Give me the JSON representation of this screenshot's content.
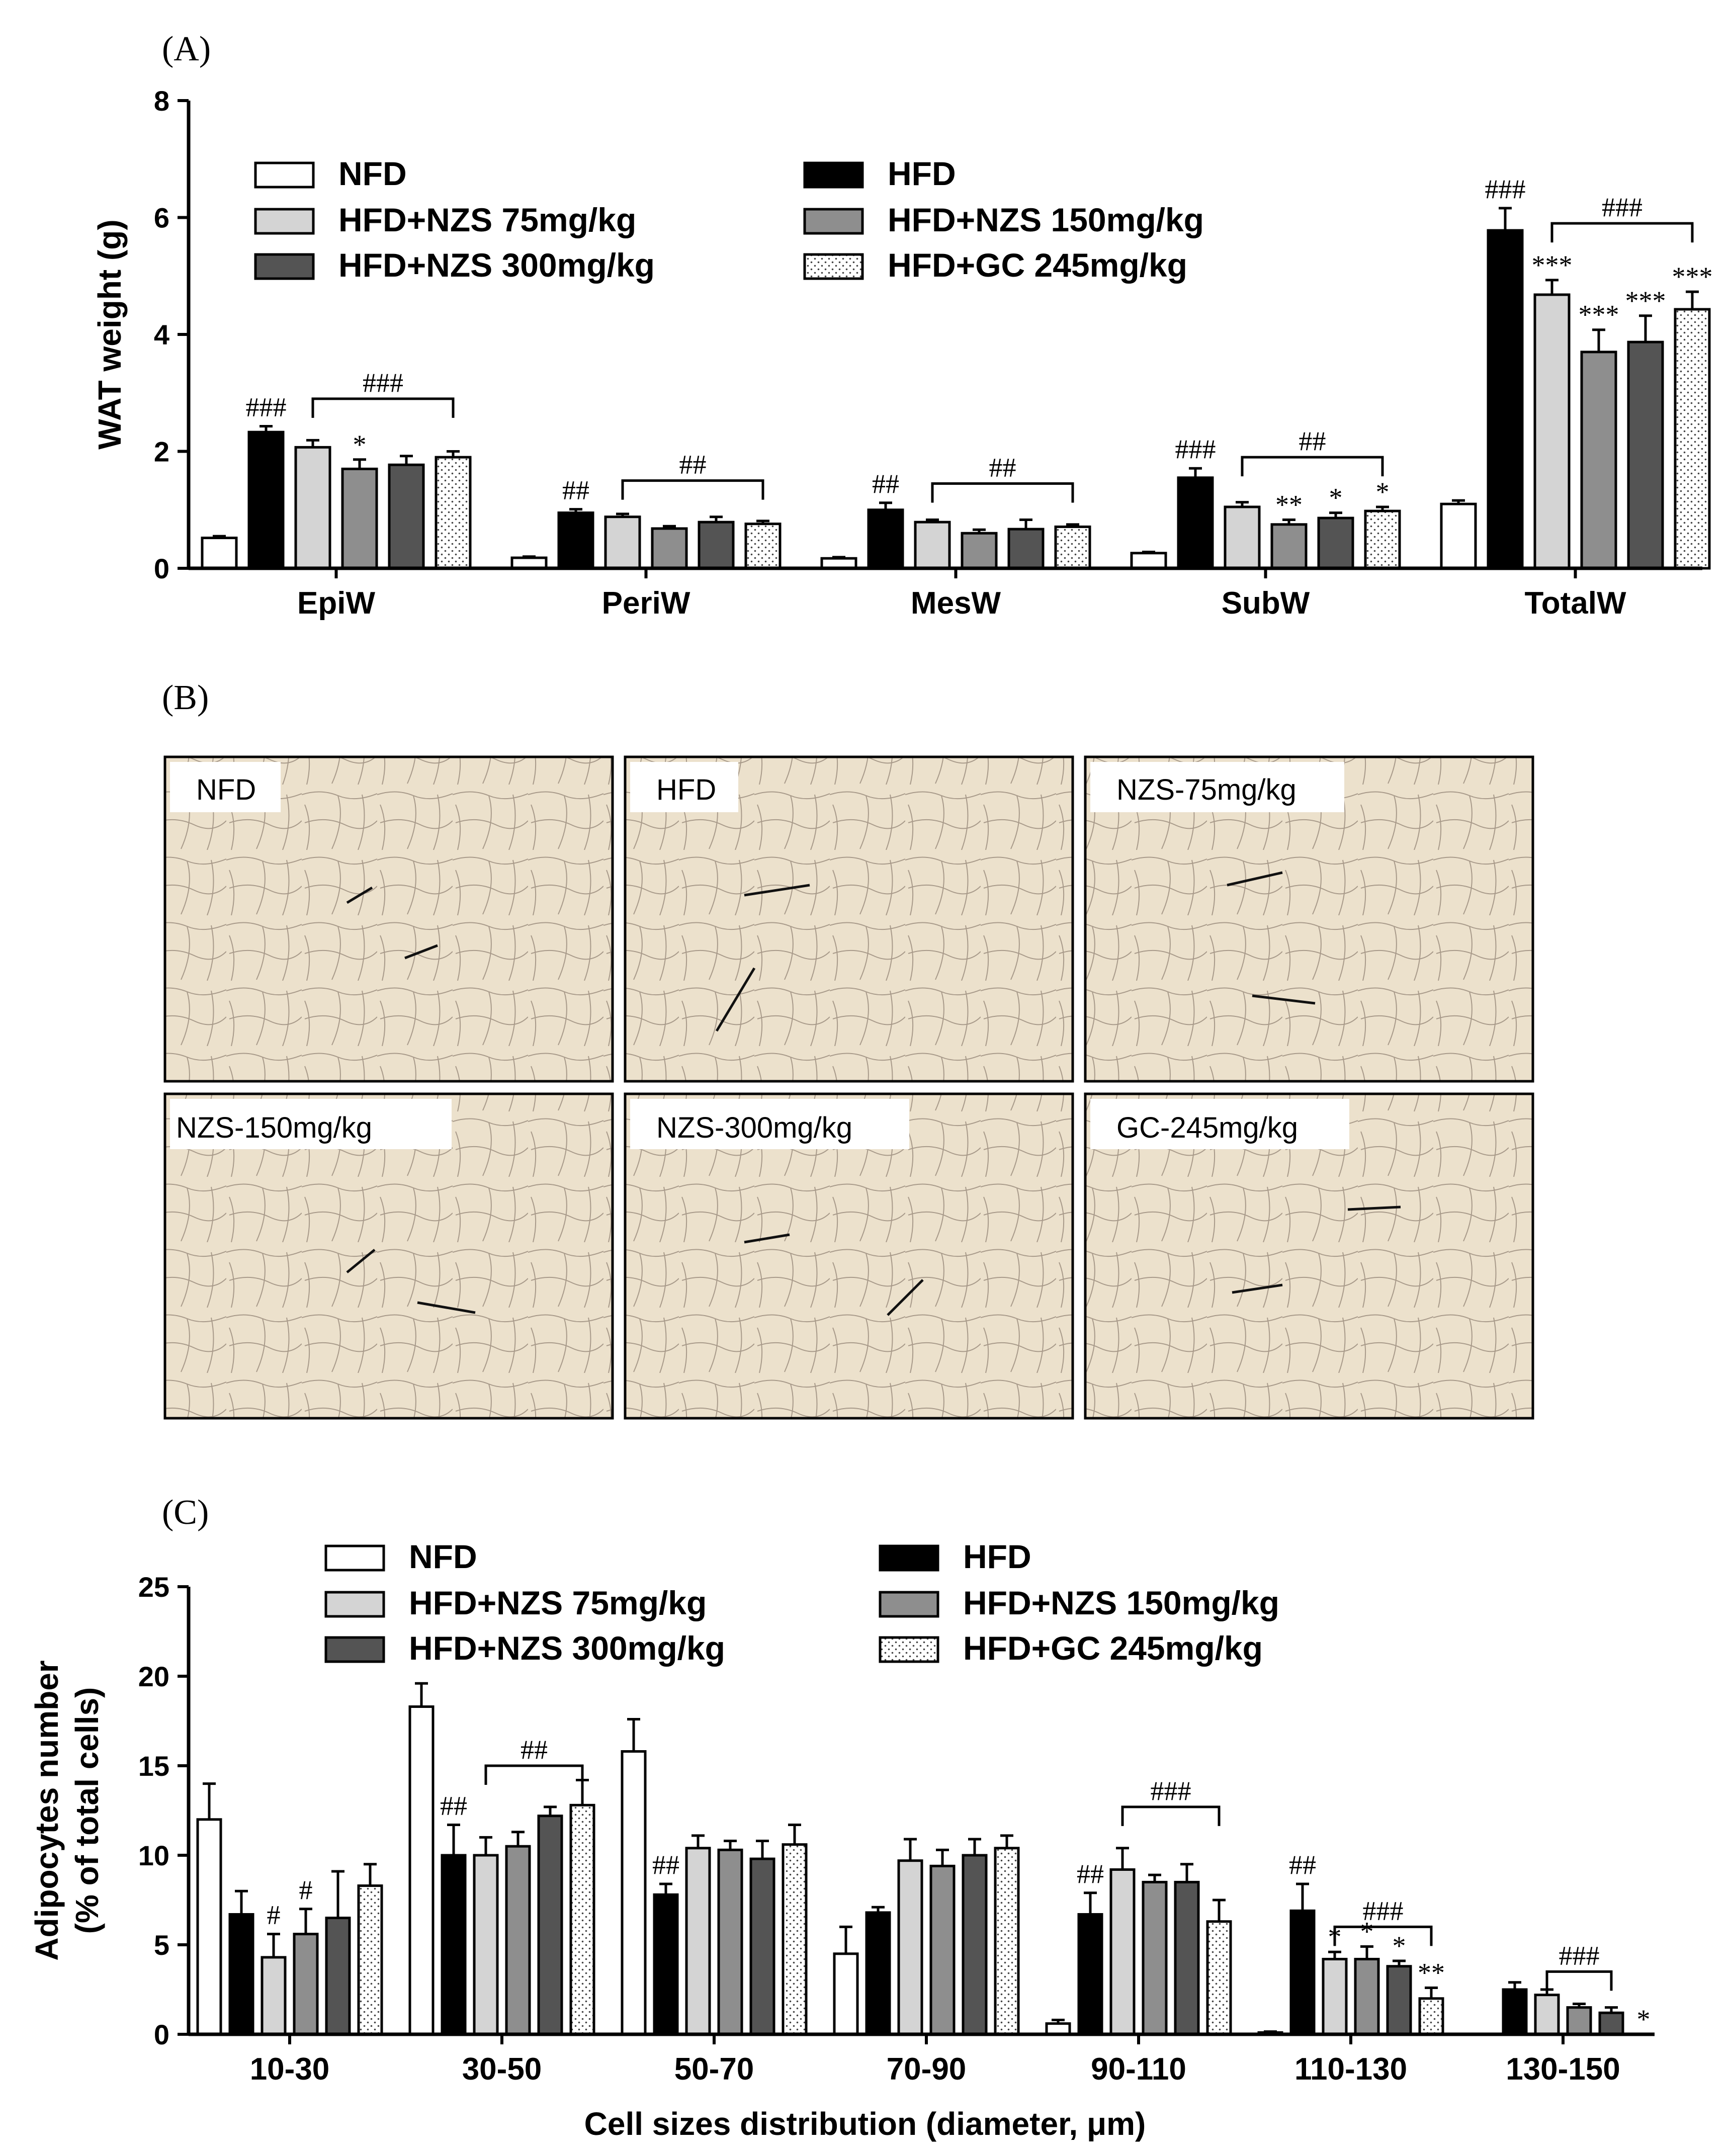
{
  "panels": {
    "a": {
      "label": "(A)"
    },
    "b": {
      "label": "(B)",
      "images": [
        {
          "label": "NFD"
        },
        {
          "label": "HFD"
        },
        {
          "label": "NZS-75mg/kg"
        },
        {
          "label": "NZS-150mg/kg"
        },
        {
          "label": "NZS-300mg/kg"
        },
        {
          "label": "GC-245mg/kg"
        }
      ]
    },
    "c": {
      "label": "(C)"
    }
  },
  "groups": [
    {
      "name": "NFD",
      "fill": "#ffffff",
      "pattern": "solid"
    },
    {
      "name": "HFD",
      "fill": "#000000",
      "pattern": "solid"
    },
    {
      "name": "HFD+NZS 75mg/kg",
      "fill": "#d4d4d4",
      "pattern": "solid"
    },
    {
      "name": "HFD+NZS 150mg/kg",
      "fill": "#8e8e8e",
      "pattern": "solid"
    },
    {
      "name": "HFD+NZS 300mg/kg",
      "fill": "#545454",
      "pattern": "solid"
    },
    {
      "name": "HFD+GC 245mg/kg",
      "fill": "#ffffff",
      "pattern": "dots"
    }
  ],
  "chart_data": [
    {
      "id": "A",
      "type": "bar",
      "ylabel": "WAT weight (g)",
      "xlabel": "",
      "ylim": [
        0,
        8
      ],
      "yticks": [
        0,
        2,
        4,
        6,
        8
      ],
      "categories": [
        "EpiW",
        "PeriW",
        "MesW",
        "SubW",
        "TotalW"
      ],
      "series": [
        {
          "name": "NFD",
          "values": [
            0.52,
            0.18,
            0.17,
            0.26,
            1.1
          ],
          "errors": [
            0.03,
            0.02,
            0.02,
            0.02,
            0.06
          ]
        },
        {
          "name": "HFD",
          "values": [
            2.33,
            0.95,
            1.0,
            1.55,
            5.78
          ],
          "errors": [
            0.1,
            0.06,
            0.12,
            0.16,
            0.38
          ]
        },
        {
          "name": "HFD+NZS 75mg/kg",
          "values": [
            2.07,
            0.88,
            0.79,
            1.05,
            4.68
          ],
          "errors": [
            0.12,
            0.05,
            0.04,
            0.08,
            0.25
          ]
        },
        {
          "name": "HFD+NZS 150mg/kg",
          "values": [
            1.7,
            0.68,
            0.6,
            0.75,
            3.7
          ],
          "errors": [
            0.16,
            0.04,
            0.06,
            0.08,
            0.38
          ]
        },
        {
          "name": "HFD+NZS 300mg/kg",
          "values": [
            1.77,
            0.79,
            0.67,
            0.86,
            3.87
          ],
          "errors": [
            0.15,
            0.09,
            0.16,
            0.09,
            0.45
          ]
        },
        {
          "name": "HFD+GC 245mg/kg",
          "values": [
            1.9,
            0.76,
            0.71,
            0.98,
            4.43
          ],
          "errors": [
            0.1,
            0.05,
            0.04,
            0.07,
            0.3
          ]
        }
      ],
      "annotations": [
        {
          "text": "###",
          "cat": 0,
          "bar": 1
        },
        {
          "text": "*",
          "cat": 0,
          "bar": 3
        },
        {
          "text": "##",
          "cat": 1,
          "bar": 1
        },
        {
          "text": "##",
          "cat": 2,
          "bar": 1
        },
        {
          "text": "###",
          "cat": 3,
          "bar": 1
        },
        {
          "text": "**",
          "cat": 3,
          "bar": 3
        },
        {
          "text": "*",
          "cat": 3,
          "bar": 4
        },
        {
          "text": "*",
          "cat": 3,
          "bar": 5
        },
        {
          "text": "###",
          "cat": 4,
          "bar": 1
        },
        {
          "text": "***",
          "cat": 4,
          "bar": 2
        },
        {
          "text": "***",
          "cat": 4,
          "bar": 3
        },
        {
          "text": "***",
          "cat": 4,
          "bar": 4
        },
        {
          "text": "***",
          "cat": 4,
          "bar": 5
        }
      ],
      "brackets": [
        {
          "text": "###",
          "cat": 0,
          "from": 2,
          "to": 5,
          "y": 2.9
        },
        {
          "text": "##",
          "cat": 1,
          "from": 2,
          "to": 5,
          "y": 1.5
        },
        {
          "text": "##",
          "cat": 2,
          "from": 2,
          "to": 5,
          "y": 1.45
        },
        {
          "text": "##",
          "cat": 3,
          "from": 2,
          "to": 5,
          "y": 1.9
        },
        {
          "text": "###",
          "cat": 4,
          "from": 2,
          "to": 5,
          "y": 5.9
        }
      ]
    },
    {
      "id": "C",
      "type": "bar",
      "ylabel": "Adipocytes number",
      "ylabel2": "(% of total cells)",
      "xlabel": "Cell sizes distribution (diameter, μm)",
      "ylim": [
        0,
        25
      ],
      "yticks": [
        0,
        5,
        10,
        15,
        20,
        25
      ],
      "categories": [
        "10-30",
        "30-50",
        "50-70",
        "70-90",
        "90-110",
        "110-130",
        "130-150"
      ],
      "series": [
        {
          "name": "NFD",
          "values": [
            12.0,
            18.3,
            15.8,
            4.5,
            0.6,
            0.1,
            0
          ],
          "errors": [
            2.0,
            1.3,
            1.8,
            1.5,
            0.2,
            0.05,
            0
          ]
        },
        {
          "name": "HFD",
          "values": [
            6.7,
            10.0,
            7.8,
            6.8,
            6.7,
            6.9,
            2.5
          ],
          "errors": [
            1.3,
            1.7,
            0.6,
            0.3,
            1.2,
            1.5,
            0.4
          ]
        },
        {
          "name": "HFD+NZS 75mg/kg",
          "values": [
            4.3,
            10.0,
            10.4,
            9.7,
            9.2,
            4.2,
            2.2
          ],
          "errors": [
            1.3,
            1.0,
            0.7,
            1.2,
            1.2,
            0.4,
            0.3
          ]
        },
        {
          "name": "HFD+NZS 150mg/kg",
          "values": [
            5.6,
            10.5,
            10.3,
            9.4,
            8.5,
            4.2,
            1.5
          ],
          "errors": [
            1.4,
            0.8,
            0.5,
            0.9,
            0.4,
            0.7,
            0.2
          ]
        },
        {
          "name": "HFD+NZS 300mg/kg",
          "values": [
            6.5,
            12.2,
            9.8,
            10.0,
            8.5,
            3.8,
            1.2
          ],
          "errors": [
            2.6,
            0.5,
            1.0,
            0.9,
            1.0,
            0.3,
            0.3
          ]
        },
        {
          "name": "HFD+GC 245mg/kg",
          "values": [
            8.3,
            12.8,
            10.6,
            10.4,
            6.3,
            2.0,
            0
          ],
          "errors": [
            1.2,
            1.4,
            1.1,
            0.7,
            1.2,
            0.6,
            0
          ]
        }
      ],
      "annotations": [
        {
          "text": "#",
          "cat": 0,
          "bar": 2
        },
        {
          "text": "#",
          "cat": 0,
          "bar": 3
        },
        {
          "text": "##",
          "cat": 1,
          "bar": 1
        },
        {
          "text": "##",
          "cat": 2,
          "bar": 1
        },
        {
          "text": "##",
          "cat": 4,
          "bar": 1
        },
        {
          "text": "##",
          "cat": 5,
          "bar": 1
        },
        {
          "text": "*",
          "cat": 5,
          "bar": 2
        },
        {
          "text": "*",
          "cat": 5,
          "bar": 3
        },
        {
          "text": "*",
          "cat": 5,
          "bar": 4
        },
        {
          "text": "**",
          "cat": 5,
          "bar": 5
        },
        {
          "text": "*",
          "cat": 6,
          "bar": 5
        }
      ],
      "brackets": [
        {
          "text": "##",
          "cat": 1,
          "from": 2,
          "to": 5,
          "y": 15.0
        },
        {
          "text": "###",
          "cat": 4,
          "from": 2,
          "to": 5,
          "y": 12.7
        },
        {
          "text": "###",
          "cat": 5,
          "from": 2,
          "to": 5,
          "y": 6.0
        },
        {
          "text": "###",
          "cat": 6,
          "from": 2,
          "to": 4,
          "y": 3.5
        }
      ]
    }
  ]
}
